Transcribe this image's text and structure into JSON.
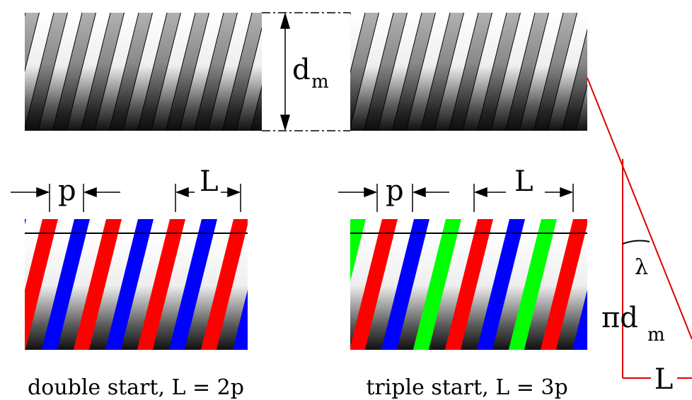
{
  "dimension": {
    "main": "d",
    "sub": "m"
  },
  "double_start": {
    "pitch_label": "p",
    "lead_label": "L",
    "caption": "double start, L = 2p"
  },
  "triple_start": {
    "pitch_label": "p",
    "lead_label": "L",
    "caption": "triple start, L = 3p"
  },
  "lead_triangle": {
    "angle_label": "λ",
    "circumference": {
      "main": "πd",
      "sub": "m"
    },
    "lead_label": "L"
  }
}
